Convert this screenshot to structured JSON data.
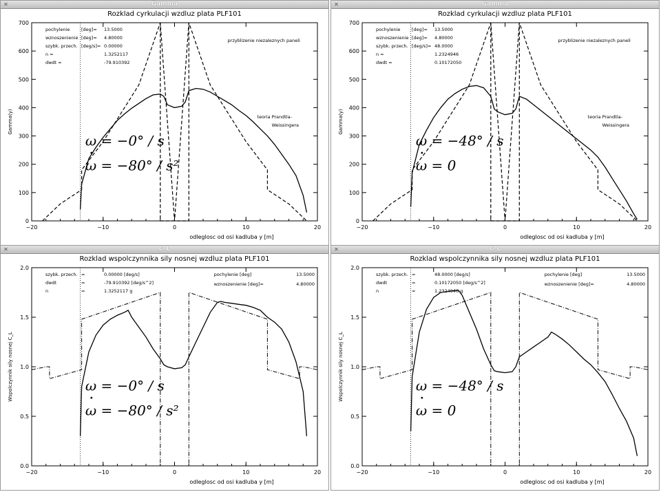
{
  "windows": [
    {
      "window_title": "Gamma",
      "chart_data": {
        "type": "line",
        "title": "Rozklad cyrkulacji wzdluz plata PLF101",
        "xlabel": "odleglosc od osi kadluba   y [m]",
        "ylabel": "Gamma(y)",
        "xlim": [
          -20,
          20
        ],
        "ylim": [
          0,
          700
        ],
        "xticks": [
          -20,
          -10,
          0,
          10,
          20
        ],
        "yticks": [
          0,
          100,
          200,
          300,
          400,
          500,
          600,
          700
        ],
        "info_left": [
          {
            "label": "pochylenie",
            "unit": "[deg]=",
            "value": "13.5000"
          },
          {
            "label": "wznoszenienie",
            "unit": "[deg]=",
            "value": "4.80000"
          },
          {
            "label": "szybk. przech.",
            "unit": "[deg/s]=",
            "value": "0.00000"
          },
          {
            "label": "n =",
            "unit": "",
            "value": "1.3252117"
          },
          {
            "label": "dwdt =",
            "unit": "",
            "value": "-79.910392"
          }
        ],
        "annotations": [
          "przyblizenie niezaleznych paneli",
          "teoria Prandtla-",
          "Weissingera"
        ],
        "omega_line1": "ω = −0° / s",
        "omega_line2": "ω = −80° / s²",
        "series": [
          {
            "style": "solid",
            "x": [
              -13.2,
              -13,
              -12,
              -11,
              -10,
              -9,
              -8,
              -7,
              -6,
              -5,
              -4,
              -3,
              -2,
              -1.5,
              -1,
              0,
              1,
              1.5,
              2,
              3,
              4,
              5,
              6,
              7,
              8,
              9,
              10,
              11,
              12,
              13,
              14,
              15,
              16,
              17,
              18,
              18.5
            ],
            "y": [
              40,
              130,
              220,
              260,
              295,
              325,
              355,
              378,
              398,
              415,
              432,
              445,
              448,
              440,
              410,
              400,
              405,
              420,
              460,
              468,
              465,
              455,
              440,
              425,
              410,
              390,
              372,
              350,
              325,
              300,
              270,
              235,
              200,
              160,
              90,
              30
            ]
          },
          {
            "style": "dashed",
            "x": [
              -18.5,
              -16,
              -13,
              -13,
              -10,
              -5,
              -2,
              0,
              2,
              5,
              10,
              13,
              13,
              16,
              18.5
            ],
            "y": [
              0,
              60,
              110,
              180,
              280,
              480,
              700,
              0,
              700,
              480,
              280,
              180,
              110,
              60,
              0
            ]
          },
          {
            "style": "dashed_rect",
            "x": [
              -2,
              -2,
              2,
              2
            ],
            "y": [
              700,
              0,
              0,
              700
            ]
          }
        ],
        "dotted_x": -13.2
      }
    },
    {
      "window_title": "Gamma",
      "chart_data": {
        "type": "line",
        "title": "Rozklad cyrkulacji wzdluz plata PLF101",
        "xlabel": "odleglosc od osi kadluba   y [m]",
        "ylabel": "Gamma(y)",
        "xlim": [
          -20,
          20
        ],
        "ylim": [
          0,
          700
        ],
        "xticks": [
          -20,
          -10,
          0,
          10,
          20
        ],
        "yticks": [
          0,
          100,
          200,
          300,
          400,
          500,
          600,
          700
        ],
        "info_left": [
          {
            "label": "pochylenie",
            "unit": "[deg]=",
            "value": "13.5000"
          },
          {
            "label": "wznoszenienie",
            "unit": "[deg]=",
            "value": "4.80000"
          },
          {
            "label": "szybk. przech.",
            "unit": "[deg/s]=",
            "value": "48.0000"
          },
          {
            "label": "n =",
            "unit": "",
            "value": "1.2324946"
          },
          {
            "label": "dwdt =",
            "unit": "",
            "value": "0.10172050"
          }
        ],
        "annotations": [
          "przyblizenie niezaleznych paneli",
          "teoria Prandtla-",
          "Weissingera"
        ],
        "omega_line1": "ω = −48° / s",
        "omega_line2": "ω = 0",
        "series": [
          {
            "style": "solid",
            "x": [
              -13.2,
              -13,
              -12,
              -11,
              -10,
              -9,
              -8,
              -7,
              -6,
              -5,
              -4,
              -3,
              -2,
              -1.5,
              -1,
              0,
              1,
              1.5,
              2,
              3,
              4,
              5,
              6,
              7,
              8,
              9,
              10,
              11,
              12,
              13,
              14,
              15,
              16,
              17,
              18,
              18.5
            ],
            "y": [
              50,
              170,
              270,
              320,
              365,
              400,
              430,
              450,
              465,
              475,
              478,
              470,
              440,
              395,
              385,
              375,
              380,
              395,
              440,
              430,
              410,
              390,
              370,
              350,
              330,
              310,
              290,
              270,
              250,
              225,
              190,
              150,
              110,
              70,
              25,
              5
            ]
          },
          {
            "style": "dashed",
            "x": [
              -18.5,
              -16,
              -13,
              -13,
              -10,
              -5,
              -2,
              0,
              2,
              5,
              10,
              13,
              13,
              16,
              18.5
            ],
            "y": [
              0,
              60,
              110,
              180,
              280,
              480,
              700,
              0,
              700,
              480,
              280,
              180,
              110,
              60,
              0
            ]
          },
          {
            "style": "dashed_rect",
            "x": [
              -2,
              -2,
              2,
              2
            ],
            "y": [
              700,
              0,
              0,
              700
            ]
          }
        ],
        "dotted_x": -13.2
      }
    },
    {
      "window_title": "C_L",
      "chart_data": {
        "type": "line",
        "title": "Rozklad wspolczynnika sily nosnej wzdluz plata PLF101",
        "xlabel": "odleglosc od osi kadluba   y [m]",
        "ylabel": "Wspolczynnik sily nosnej C_L",
        "xlim": [
          -20,
          20
        ],
        "ylim": [
          0,
          2.0
        ],
        "xticks": [
          -20,
          -10,
          0,
          10,
          20
        ],
        "yticks": [
          0.0,
          0.5,
          1.0,
          1.5,
          2.0
        ],
        "info_left": [
          {
            "label": "szybk. przech.",
            "unit": "=",
            "value": "0.00000 [deg/s]"
          },
          {
            "label": "dwdt",
            "unit": "=",
            "value": "-79.910392 [deg/s^2]"
          },
          {
            "label": "n",
            "unit": "=",
            "value": "1.3252117 g"
          }
        ],
        "info_right": [
          {
            "label": "pochylenie",
            "unit": "[deg]",
            "value": "13.5000"
          },
          {
            "label": "wznoszenienie [deg]=",
            "unit": "",
            "value": "4.80000"
          }
        ],
        "omega_line1": "ω = −0° / s",
        "omega_line2": "ω = −80° / s²",
        "series": [
          {
            "style": "solid",
            "x": [
              -13.2,
              -13,
              -12,
              -11,
              -10,
              -9,
              -8,
              -7,
              -6.5,
              -6,
              -5,
              -4,
              -3,
              -2,
              -1.5,
              -1,
              0,
              1,
              1.5,
              2,
              3,
              4,
              5,
              6,
              6.5,
              7,
              8,
              9,
              10,
              11,
              12,
              13,
              14,
              15,
              16,
              17,
              18,
              18.5
            ],
            "y": [
              0.3,
              0.8,
              1.15,
              1.32,
              1.42,
              1.48,
              1.52,
              1.55,
              1.57,
              1.5,
              1.4,
              1.3,
              1.18,
              1.08,
              1.02,
              1.0,
              0.98,
              0.99,
              1.02,
              1.1,
              1.25,
              1.4,
              1.55,
              1.65,
              1.66,
              1.65,
              1.64,
              1.63,
              1.62,
              1.6,
              1.57,
              1.5,
              1.45,
              1.38,
              1.25,
              1.05,
              0.75,
              0.3
            ]
          },
          {
            "style": "dashdot",
            "x": [
              -20,
              -18,
              -17.5,
              -17.5,
              -13,
              -13,
              -2,
              -2,
              2,
              2,
              13,
              13,
              17.5,
              17.5,
              18,
              20
            ],
            "y": [
              0.97,
              1.0,
              1.0,
              0.88,
              0.97,
              1.48,
              1.75,
              0,
              0,
              1.75,
              1.48,
              0.97,
              0.88,
              1.0,
              1.0,
              0.97
            ]
          }
        ],
        "dotted_x": -13.2
      }
    },
    {
      "window_title": "C_L",
      "chart_data": {
        "type": "line",
        "title": "Rozklad wspolczynnika sily nosnej wzdluz plata PLF101",
        "xlabel": "odleglosc od osi kadluba   y [m]",
        "ylabel": "Wspolczynnik sily nosnej C_L",
        "xlim": [
          -20,
          20
        ],
        "ylim": [
          0,
          2.0
        ],
        "xticks": [
          -20,
          -10,
          0,
          10,
          20
        ],
        "yticks": [
          0.0,
          0.5,
          1.0,
          1.5,
          2.0
        ],
        "info_left": [
          {
            "label": "szybk. przech.",
            "unit": "=",
            "value": "48.0000 [deg/s]"
          },
          {
            "label": "dwdt",
            "unit": "=",
            "value": "0.10172050 [deg/s^2]"
          },
          {
            "label": "n",
            "unit": "=",
            "value": "1.2324946 g"
          }
        ],
        "info_right": [
          {
            "label": "pochylenie",
            "unit": "[deg]",
            "value": "13.5000"
          },
          {
            "label": "wznoszenienie [deg]=",
            "unit": "",
            "value": "4.80000"
          }
        ],
        "omega_line1": "ω = −48° / s",
        "omega_line2": "ω = 0",
        "series": [
          {
            "style": "solid",
            "x": [
              -13.2,
              -13,
              -12,
              -11,
              -10,
              -9,
              -8,
              -7,
              -6.5,
              -6,
              -5,
              -4,
              -3,
              -2,
              -1.5,
              -1,
              0,
              1,
              1.5,
              2,
              3,
              4,
              5,
              6,
              6.5,
              7,
              8,
              9,
              10,
              11,
              12,
              13,
              14,
              15,
              16,
              17,
              18,
              18.5
            ],
            "y": [
              0.35,
              0.9,
              1.35,
              1.58,
              1.7,
              1.75,
              1.76,
              1.77,
              1.77,
              1.72,
              1.55,
              1.38,
              1.18,
              1.02,
              0.96,
              0.95,
              0.94,
              0.95,
              1.0,
              1.1,
              1.15,
              1.2,
              1.25,
              1.3,
              1.35,
              1.33,
              1.28,
              1.22,
              1.15,
              1.08,
              1.02,
              0.94,
              0.85,
              0.72,
              0.58,
              0.45,
              0.28,
              0.1
            ]
          },
          {
            "style": "dashdot",
            "x": [
              -20,
              -18,
              -17.5,
              -17.5,
              -13,
              -13,
              -2,
              -2,
              2,
              2,
              13,
              13,
              17.5,
              17.5,
              18,
              20
            ],
            "y": [
              0.97,
              1.0,
              1.0,
              0.88,
              0.97,
              1.48,
              1.75,
              0,
              0,
              1.75,
              1.48,
              0.97,
              0.88,
              1.0,
              1.0,
              0.97
            ]
          }
        ],
        "dotted_x": -13.2
      }
    }
  ]
}
